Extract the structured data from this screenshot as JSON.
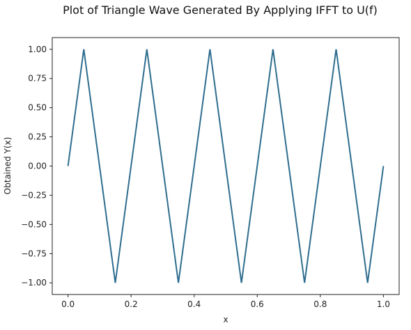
{
  "chart_data": {
    "type": "line",
    "title": "Plot of Triangle Wave Generated By Applying IFFT to U(f)",
    "xlabel": "x",
    "ylabel": "Obtained Y(x)",
    "xlim": [
      -0.05,
      1.05
    ],
    "ylim": [
      -1.1,
      1.1
    ],
    "xticks": [
      "0.0",
      "0.2",
      "0.4",
      "0.6",
      "0.8",
      "1.0"
    ],
    "xtick_values": [
      0.0,
      0.2,
      0.4,
      0.6,
      0.8,
      1.0
    ],
    "yticks": [
      "1.00",
      "0.75",
      "0.50",
      "0.25",
      "0.00",
      "−0.25",
      "−0.50",
      "−0.75",
      "−1.00"
    ],
    "ytick_values": [
      1.0,
      0.75,
      0.5,
      0.25,
      0.0,
      -0.25,
      -0.5,
      -0.75,
      -1.0
    ],
    "grid": false,
    "series": [
      {
        "color": "#2e6d8e",
        "x": [
          0.0,
          0.05,
          0.15,
          0.25,
          0.35,
          0.45,
          0.55,
          0.65,
          0.75,
          0.85,
          0.95,
          1.0
        ],
        "y": [
          0.0,
          1.0,
          -1.0,
          1.0,
          -1.0,
          1.0,
          -1.0,
          1.0,
          -1.0,
          1.0,
          -1.0,
          0.0
        ]
      }
    ]
  }
}
